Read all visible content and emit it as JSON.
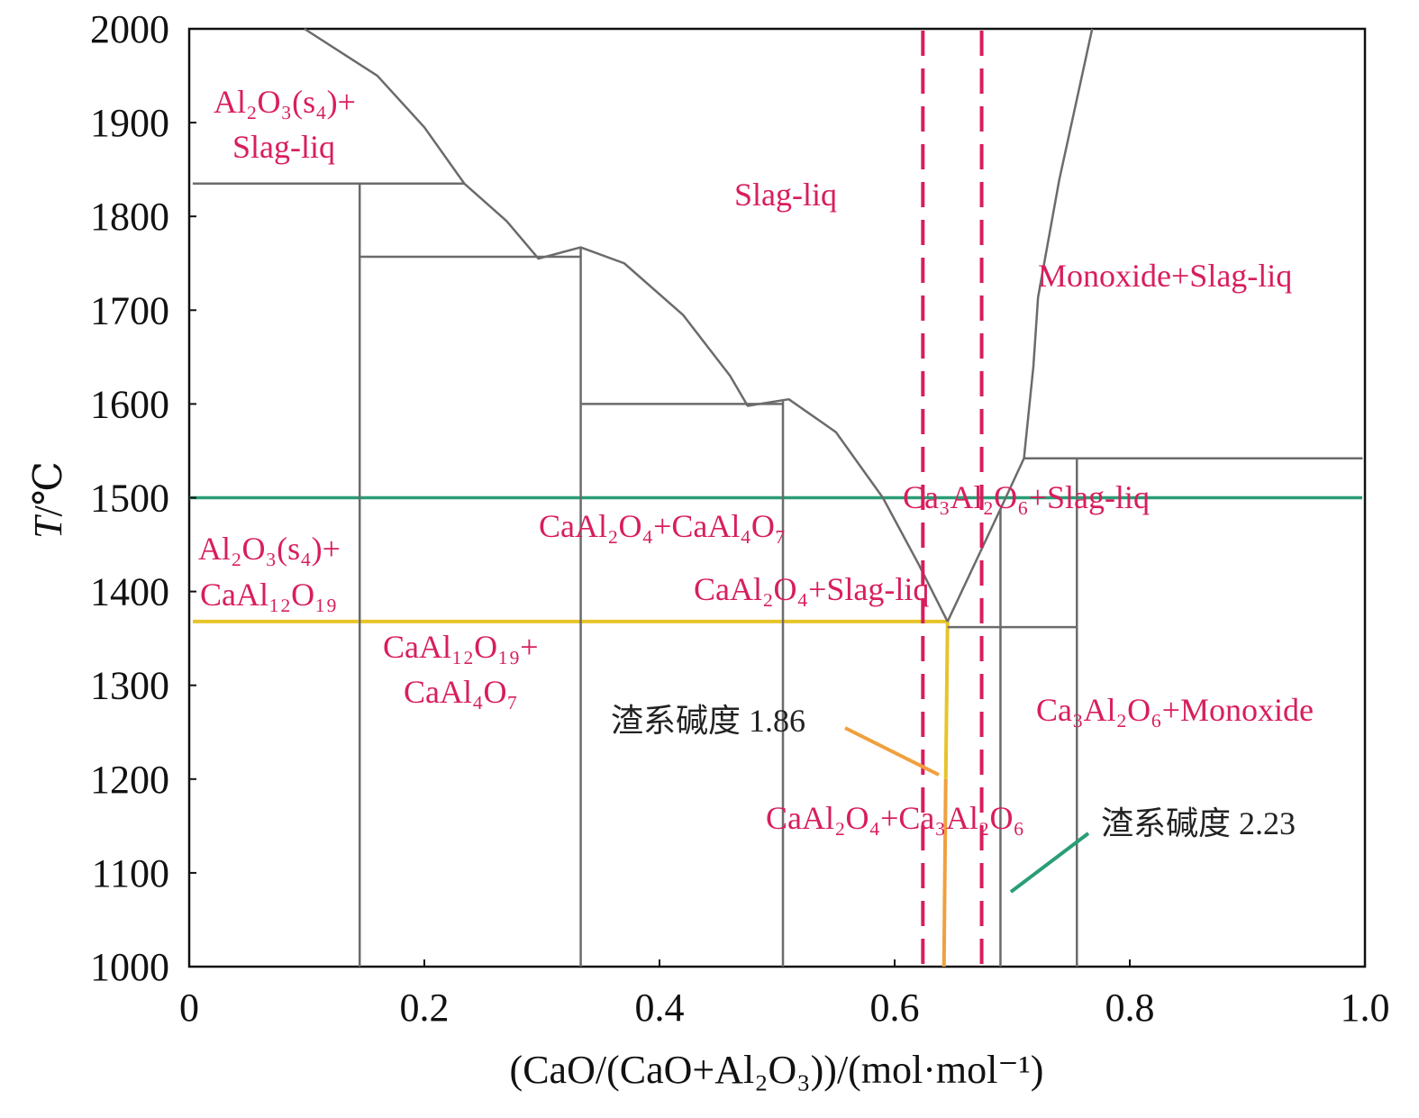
{
  "chart_data": {
    "type": "line",
    "title": "",
    "xlabel": "(CaO/(CaO+Al₂O₃))/(mol·mol⁻¹)",
    "ylabel_italic": "T",
    "ylabel_rest": "/℃",
    "xlim": [
      0,
      1.0
    ],
    "ylim": [
      1000,
      2000
    ],
    "xticks": [
      0,
      0.2,
      0.4,
      0.6,
      0.8,
      1.0
    ],
    "xtick_labels": [
      "0",
      "0.2",
      "0.4",
      "0.6",
      "0.8",
      "1.0"
    ],
    "yticks": [
      1000,
      1100,
      1200,
      1300,
      1400,
      1500,
      1600,
      1700,
      1800,
      1900,
      2000
    ],
    "ytick_labels": [
      "1000",
      "1100",
      "1200",
      "1300",
      "1400",
      "1500",
      "1600",
      "1700",
      "1800",
      "1900",
      "2000"
    ],
    "colors": {
      "phase_line": "#6b6b6b",
      "label": "#d81e5b",
      "dashed": "#d81e5b",
      "green": "#2a9d78",
      "yellow": "#e6c42a",
      "orange": "#f0a040"
    },
    "liquidus_left": [
      [
        0.098,
        2000
      ],
      [
        0.16,
        1950
      ],
      [
        0.2,
        1895
      ],
      [
        0.234,
        1835
      ],
      [
        0.27,
        1795
      ],
      [
        0.297,
        1755
      ],
      [
        0.333,
        1767
      ],
      [
        0.37,
        1750
      ],
      [
        0.42,
        1695
      ],
      [
        0.46,
        1630
      ],
      [
        0.475,
        1598
      ],
      [
        0.51,
        1605
      ],
      [
        0.55,
        1570
      ],
      [
        0.59,
        1500
      ],
      [
        0.62,
        1430
      ],
      [
        0.645,
        1368
      ]
    ],
    "liquidus_right": [
      [
        0.645,
        1368
      ],
      [
        0.69,
        1488
      ],
      [
        0.71,
        1542
      ],
      [
        0.718,
        1640
      ],
      [
        0.722,
        1714
      ],
      [
        0.74,
        1839
      ],
      [
        0.755,
        1925
      ],
      [
        0.768,
        2000
      ]
    ],
    "phase_lines": [
      [
        [
          0.003,
          1835
        ],
        [
          0.234,
          1835
        ]
      ],
      [
        [
          0.145,
          1835
        ],
        [
          0.145,
          1000
        ]
      ],
      [
        [
          0.145,
          1757
        ],
        [
          0.333,
          1757
        ]
      ],
      [
        [
          0.333,
          1767
        ],
        [
          0.333,
          1000
        ]
      ],
      [
        [
          0.333,
          1600
        ],
        [
          0.505,
          1600
        ]
      ],
      [
        [
          0.505,
          1603
        ],
        [
          0.505,
          1000
        ]
      ],
      [
        [
          0.645,
          1362
        ],
        [
          0.755,
          1362
        ]
      ],
      [
        [
          0.69,
          1488
        ],
        [
          0.69,
          1000
        ]
      ],
      [
        [
          0.755,
          1542
        ],
        [
          0.755,
          1000
        ]
      ],
      [
        [
          0.71,
          1542
        ],
        [
          0.998,
          1542
        ]
      ]
    ],
    "isotherm_1500": {
      "T": 1500,
      "color": "#2a9d78"
    },
    "isotherm_1368": {
      "T": 1368,
      "x_end": 0.645,
      "color": "#e6c42a"
    },
    "composition_1368": {
      "x": 0.645,
      "T_from": 1368,
      "T_to": 1000
    },
    "dashed_lines_x": [
      0.624,
      0.674
    ],
    "regions": [
      {
        "text": "Al₂O₃(s₄)+"
      },
      {
        "text": "Slag-liq"
      },
      {
        "text": "Slag-liq"
      },
      {
        "text": "Monoxide+Slag-liq"
      },
      {
        "text": "Ca₃Al₂O₆+Slag-liq"
      },
      {
        "text": "CaAl₂O₄+CaAl₄O₇"
      },
      {
        "text": "Al₂O₃(s₄)+"
      },
      {
        "text": "CaAl₁₂O₁₉"
      },
      {
        "text": "CaAl₂O₄+Slag-liq"
      },
      {
        "text": "CaAl₁₂O₁₉+"
      },
      {
        "text": "CaAl₄O₇"
      },
      {
        "text": "Ca₃Al₂O₆+Monoxide"
      },
      {
        "text": "CaAl₂O₄+Ca₃Al₂O₆"
      }
    ],
    "annotations": [
      {
        "text": "渣系碱度 1.86",
        "basicity": 1.86,
        "color": "#f0a040"
      },
      {
        "text": "渣系碱度 2.23",
        "basicity": 2.23,
        "color": "#2a9d78"
      }
    ]
  }
}
